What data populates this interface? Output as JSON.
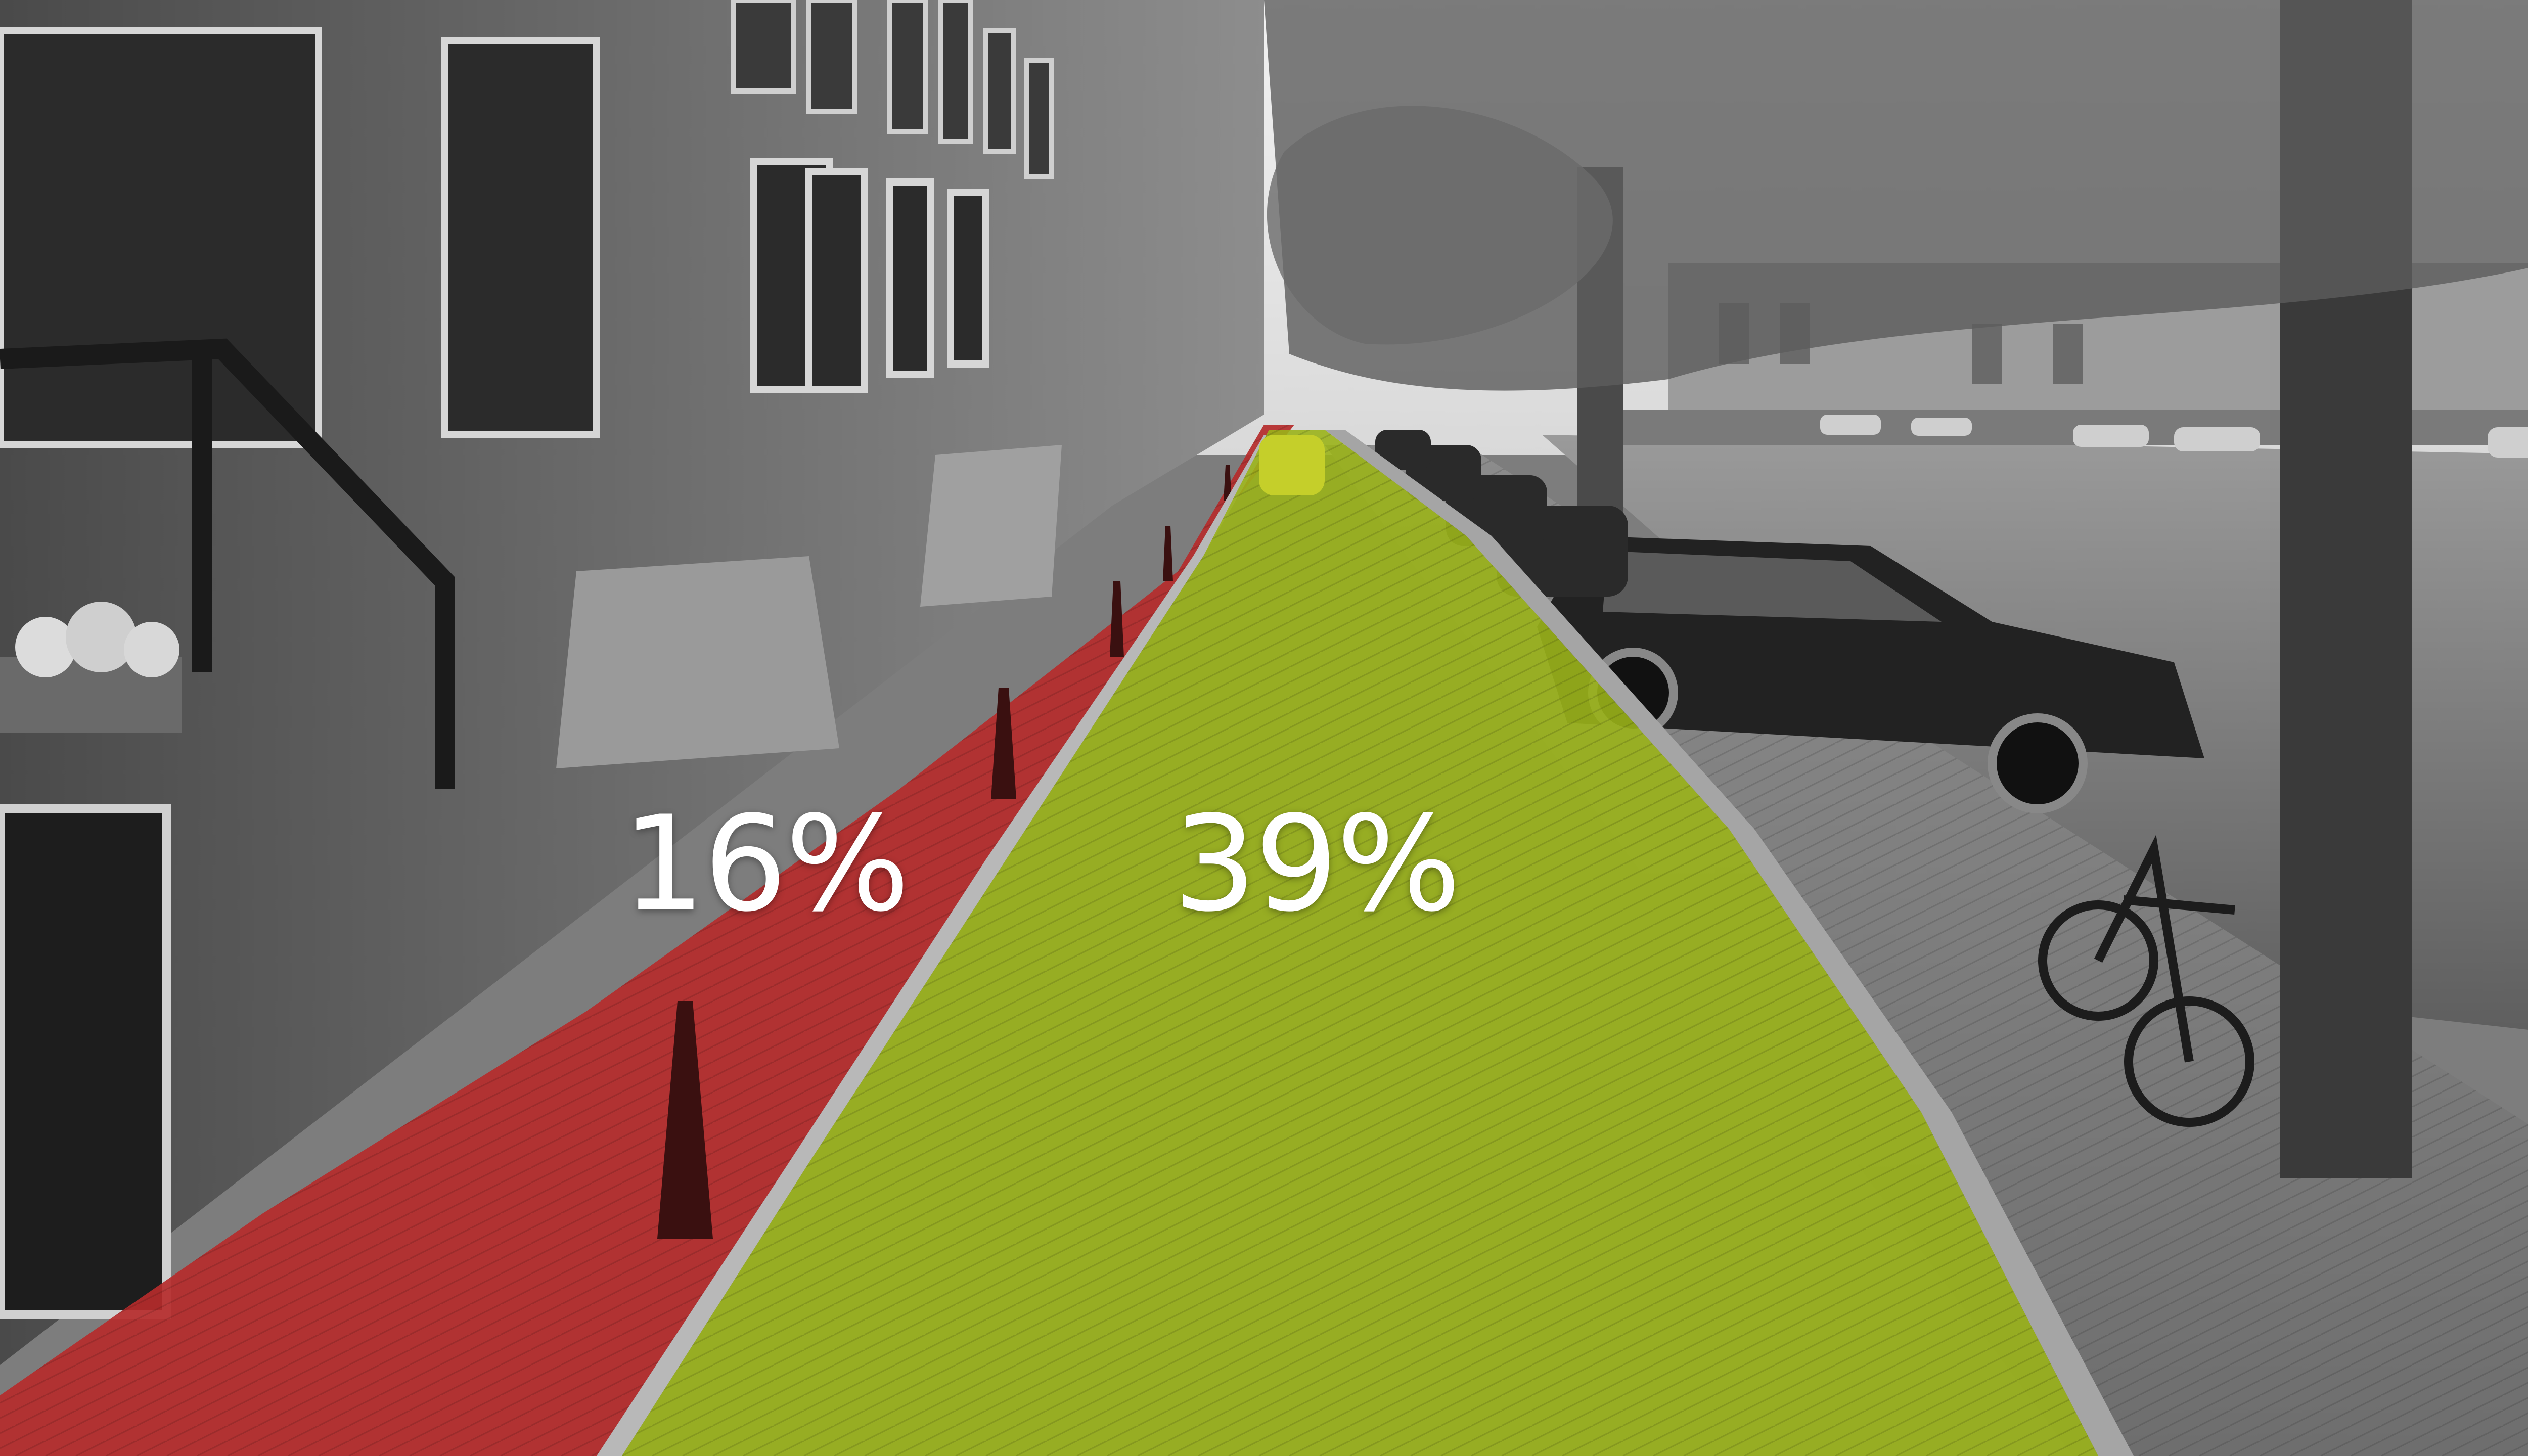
{
  "image": {
    "description_labels": {
      "sidewalk_share": "16%",
      "roadway_share": "39%"
    },
    "colors": {
      "sidewalk_overlay": "#b52b2b",
      "roadway_overlay": "#9ab31a",
      "label_text": "#ffffff",
      "grayscale_base": "#8a8a8a"
    }
  }
}
